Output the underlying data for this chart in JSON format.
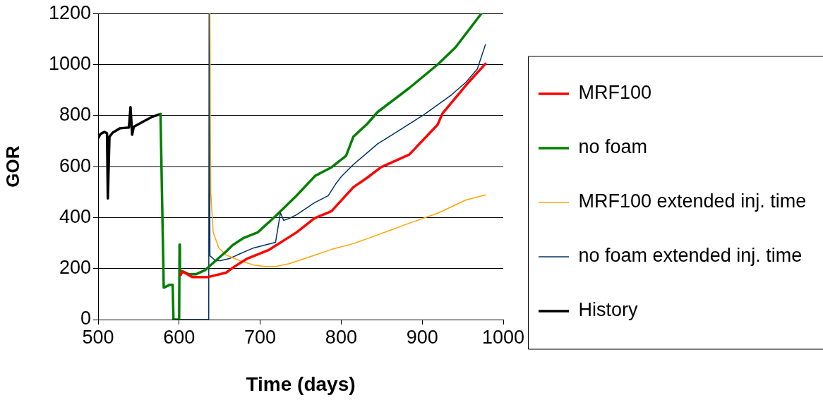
{
  "chart_data": {
    "type": "line",
    "xlabel": "Time (days)",
    "ylabel": "GOR",
    "xlim": [
      500,
      1000
    ],
    "xticks": [
      500,
      600,
      700,
      800,
      900,
      1000
    ],
    "ylim": [
      0,
      1200
    ],
    "yticks": [
      0,
      200,
      400,
      600,
      800,
      1000,
      1200
    ],
    "grid": "y",
    "legend": "right",
    "marker": "none",
    "line_style": "solid",
    "series": [
      {
        "name": "MRF100",
        "color": "#ff0000",
        "x": [
          602,
          604,
          616,
          636,
          658,
          666,
          684,
          710,
          745,
          767,
          788,
          815,
          832,
          849,
          884,
          919,
          925,
          954,
          978
        ],
        "values": [
          175,
          189,
          167,
          167,
          184,
          203,
          239,
          272,
          342,
          397,
          425,
          519,
          556,
          597,
          647,
          764,
          808,
          919,
          1003
        ]
      },
      {
        "name": "no foam",
        "color": "#008000",
        "x": [
          577,
          581,
          588,
          592,
          593,
          600,
          600.5,
          601,
          604,
          612,
          621,
          632,
          638,
          658,
          666,
          679,
          697,
          719,
          745,
          768,
          788,
          806,
          815,
          832,
          845,
          884,
          919,
          941,
          973
        ],
        "values": [
          806,
          125,
          136,
          136,
          0,
          0,
          294,
          194,
          189,
          178,
          178,
          194,
          211,
          267,
          292,
          319,
          342,
          406,
          486,
          564,
          597,
          642,
          717,
          767,
          814,
          908,
          1000,
          1067,
          1200
        ]
      },
      {
        "name": "MRF100 extended inj. time",
        "color": "#ffa500",
        "x": [
          638,
          639,
          642,
          649,
          658,
          675,
          692,
          706,
          719,
          736,
          762,
          788,
          814,
          832,
          858,
          884,
          919,
          954,
          978
        ],
        "values": [
          1200,
          500,
          342,
          281,
          253,
          231,
          214,
          208,
          208,
          219,
          247,
          275,
          297,
          317,
          347,
          378,
          417,
          469,
          489
        ]
      },
      {
        "name": "no foam extended inj. time",
        "color": "#003366",
        "x": [
          593,
          636.5,
          637,
          638,
          645,
          651,
          662,
          675,
          692,
          719,
          725,
          729,
          736,
          745,
          767,
          784,
          793,
          800,
          815,
          845,
          867,
          902,
          936,
          954,
          968,
          978
        ],
        "values": [
          0,
          0,
          1200,
          250,
          231,
          231,
          239,
          258,
          281,
          303,
          419,
          389,
          397,
          411,
          458,
          486,
          531,
          560,
          608,
          689,
          733,
          803,
          881,
          931,
          983,
          1078
        ]
      },
      {
        "name": "History",
        "color": "#000000",
        "x": [
          500,
          503,
          508,
          511,
          512,
          514,
          518,
          527,
          538,
          540,
          542,
          544,
          553,
          566,
          577
        ],
        "values": [
          711,
          728,
          736,
          730,
          475,
          717,
          733,
          750,
          753,
          833,
          725,
          756,
          772,
          794,
          806
        ]
      }
    ]
  }
}
